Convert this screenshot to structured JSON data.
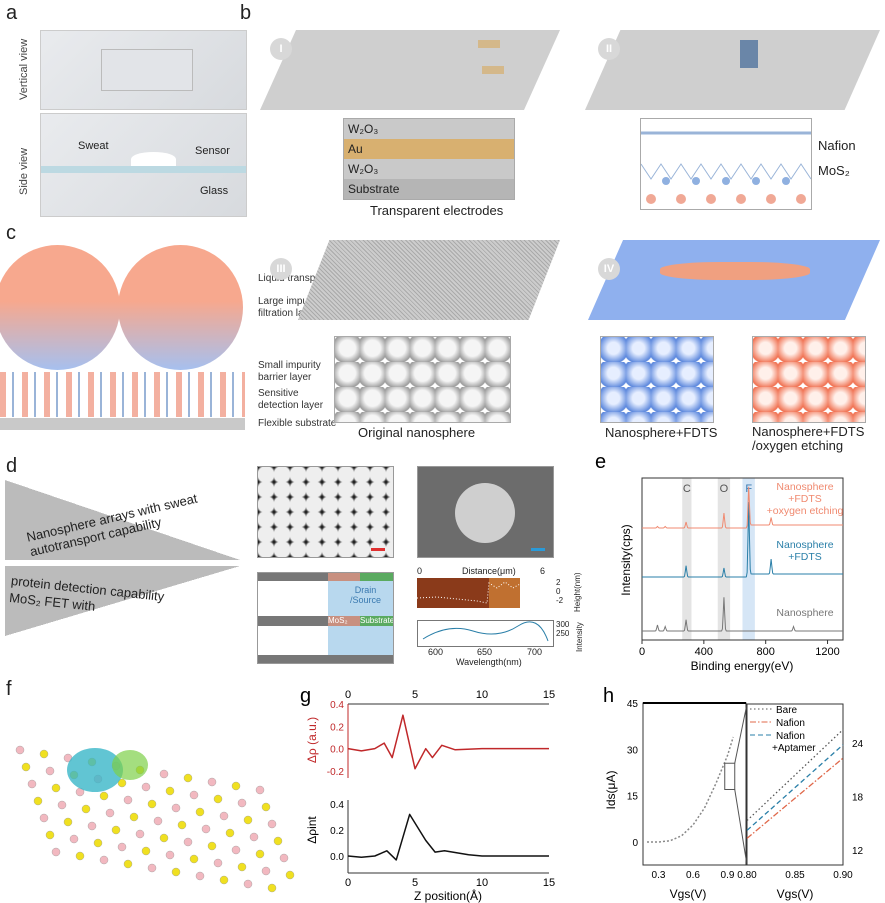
{
  "panel_a": {
    "label": "a",
    "vertical_view": "Vertical view",
    "side_view": "Side view",
    "sweat": "Sweat",
    "sensor": "Sensor",
    "glass": "Glass"
  },
  "panel_b": {
    "label": "b",
    "step_1": "I",
    "step_2": "II",
    "layers": [
      "W₂O₃",
      "Au",
      "W₂O₃",
      "Substrate"
    ],
    "caption": "Transparent electrodes",
    "nafion": "Nafion",
    "mos2": "MoS₂"
  },
  "panel_c": {
    "label": "c",
    "labels": [
      "Liquid transport",
      "Large impurity filtration layer",
      "Small impurity barrier layer",
      "Sensitive detection layer",
      "Flexible substrate"
    ],
    "step_3": "III",
    "caption_3": "Original nanosphere",
    "step_4": "IV",
    "caption_4a": "Nanosphere+FDTS",
    "caption_4b": "Nanosphere+FDTS /oxygen etching"
  },
  "panel_d": {
    "label": "d",
    "top_text": "Nanosphere arrays with sweat autotransport capability",
    "bottom_text_1": "MoS₂ FET with",
    "bottom_text_2": "protein detection capability",
    "drain_source": "Drain /Source",
    "mos2": "MoS₂",
    "substrate": "Substrate",
    "afm": {
      "xlabel": "Distance(μm)",
      "x0": "0",
      "x1": "6",
      "ylabel": "Height(nm)",
      "yticks": [
        "2",
        "0",
        "-2"
      ]
    },
    "spectrum": {
      "xlabel": "Wavelength(nm)",
      "xticks": [
        "600",
        "650",
        "700"
      ],
      "ylabel": "Intensity",
      "yticks": [
        "300",
        "250"
      ]
    },
    "colors": {
      "scale_bar_1": "#e03030",
      "scale_bar_2": "#2a9ad8",
      "drain": "#b8d8ee",
      "mos2": "#c89080",
      "substrate": "#5aaa60"
    }
  },
  "panel_f": {
    "label": "f"
  },
  "chart_data": [
    {
      "id": "e",
      "label": "e",
      "type": "line",
      "xlabel": "Binding energy(eV)",
      "ylabel": "Intensity(cps)",
      "xlim": [
        0,
        1300
      ],
      "xticks": [
        0,
        400,
        800,
        1200
      ],
      "bands": [
        {
          "name": "C",
          "range": [
            260,
            320
          ]
        },
        {
          "name": "O",
          "range": [
            490,
            570
          ]
        },
        {
          "name": "F",
          "range": [
            650,
            730
          ]
        }
      ],
      "series": [
        {
          "name": "Nanosphere",
          "color": "#777777",
          "peaks": [
            [
              100,
              0.08
            ],
            [
              150,
              0.06
            ],
            [
              285,
              0.15
            ],
            [
              530,
              0.45
            ],
            [
              980,
              0.06
            ]
          ]
        },
        {
          "name": "Nanosphere +FDTS",
          "color": "#2a7fa8",
          "peaks": [
            [
              285,
              0.15
            ],
            [
              530,
              0.12
            ],
            [
              690,
              1.0
            ],
            [
              835,
              0.2
            ]
          ]
        },
        {
          "name": "Nanosphere +FDTS +oxygen etching",
          "color": "#f08a70",
          "peaks": [
            [
              100,
              0.02
            ],
            [
              150,
              0.02
            ],
            [
              285,
              0.08
            ],
            [
              530,
              0.2
            ],
            [
              690,
              0.55
            ],
            [
              835,
              0.1
            ]
          ]
        }
      ]
    },
    {
      "id": "g",
      "label": "g",
      "type": "line",
      "xlabel": "Z position(Å)",
      "xlim": [
        0,
        15
      ],
      "xticks": [
        0,
        5,
        10,
        15
      ],
      "top": {
        "ylabel": "Δρ (a.u.)",
        "ylim": [
          -0.25,
          0.4
        ],
        "yticks": [
          -0.2,
          0.0,
          0.2,
          0.4
        ],
        "color": "#c0282a",
        "x": [
          0,
          1,
          2,
          2.7,
          3.3,
          4.1,
          5,
          5.8,
          6.3,
          7,
          8,
          10,
          15
        ],
        "y": [
          0,
          -0.02,
          0,
          0.05,
          -0.08,
          0.3,
          -0.18,
          0,
          -0.08,
          0.03,
          -0.01,
          0,
          0
        ]
      },
      "bottom": {
        "ylabel": "Δρint",
        "ylim": [
          -0.05,
          0.4
        ],
        "yticks": [
          0.0,
          0.2,
          0.4
        ],
        "color": "#111111",
        "x": [
          0,
          1,
          2,
          2.9,
          3.6,
          4.6,
          5.8,
          6.5,
          7.2,
          9,
          10,
          15
        ],
        "y": [
          0,
          -0.01,
          0,
          0.04,
          -0.03,
          0.32,
          0.12,
          0.03,
          0.04,
          0.01,
          0,
          0
        ]
      }
    },
    {
      "id": "h",
      "label": "h",
      "type": "line",
      "ylabel": "Ids(μA)",
      "xlabel": "Vgs(V)",
      "main": {
        "xlim": [
          0.2,
          1.0
        ],
        "ylim": [
          -8,
          45
        ],
        "xticks": [
          0.3,
          0.6,
          0.9
        ],
        "yticks": [
          0,
          15,
          30,
          45
        ],
        "x": [
          0.2,
          0.3,
          0.4,
          0.5,
          0.6,
          0.7,
          0.8,
          0.9,
          0.95
        ],
        "y": [
          0,
          0,
          0.4,
          2,
          5.5,
          11,
          19,
          28,
          34
        ]
      },
      "inset": {
        "xlim": [
          0.8,
          0.9
        ],
        "ylim": [
          10.5,
          26
        ],
        "xticks": [
          0.8,
          0.85,
          0.9
        ],
        "xtick_labels": [
          "0.80",
          "0.85",
          "0.90"
        ],
        "yticks": [
          12,
          18,
          24
        ],
        "series": [
          {
            "name": "Bare",
            "color": "#555555",
            "dash": "1.5,2.5",
            "x": [
              0.8,
              0.9
            ],
            "y": [
              15.3,
              25.5
            ]
          },
          {
            "name": "Nafion",
            "color": "#e0684a",
            "dash": "6,2,1.5,2",
            "x": [
              0.8,
              0.9
            ],
            "y": [
              13.3,
              22.3
            ]
          },
          {
            "name": "Nafion +Aptamer",
            "color": "#2a7fa8",
            "dash": "5,3",
            "x": [
              0.8,
              0.9
            ],
            "y": [
              14.2,
              23.8
            ]
          }
        ]
      }
    }
  ]
}
